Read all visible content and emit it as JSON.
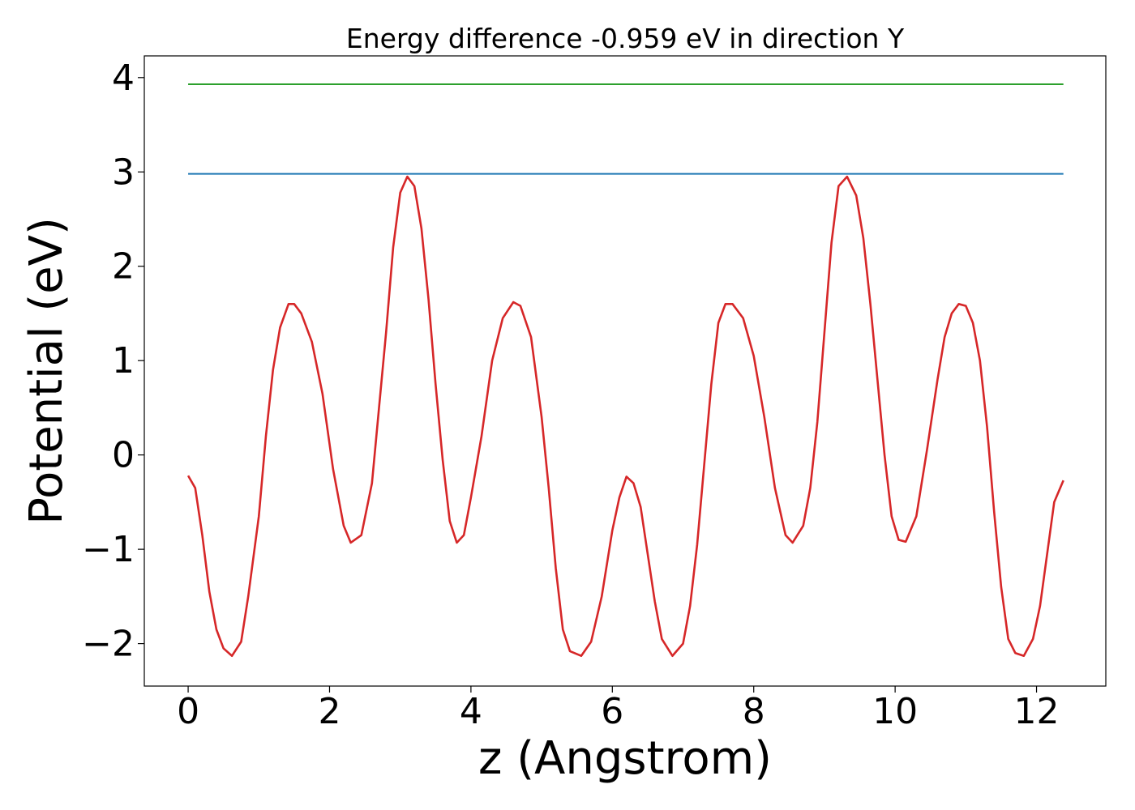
{
  "chart_data": {
    "type": "line",
    "title": "Energy difference -0.959 eV in direction Y",
    "xlabel": "z (Angstrom)",
    "ylabel": "Potential (eV)",
    "xlim": [
      -0.62,
      12.98
    ],
    "ylim": [
      -2.45,
      4.23
    ],
    "x_ticks": [
      0,
      2,
      4,
      6,
      8,
      10,
      12
    ],
    "x_tick_labels": [
      "0",
      "2",
      "4",
      "6",
      "8",
      "10",
      "12"
    ],
    "y_ticks": [
      -2,
      -1,
      0,
      1,
      2,
      3,
      4
    ],
    "y_tick_labels": [
      "−2",
      "−1",
      "0",
      "1",
      "2",
      "3",
      "4"
    ],
    "grid": false,
    "legend": "none",
    "series": [
      {
        "color": "#d62728",
        "style": "line",
        "x": [
          0,
          0.1,
          0.2,
          0.3,
          0.4,
          0.5,
          0.62,
          0.75,
          0.85,
          1.0,
          1.1,
          1.2,
          1.3,
          1.42,
          1.5,
          1.6,
          1.75,
          1.9,
          2.05,
          2.2,
          2.3,
          2.45,
          2.6,
          2.7,
          2.8,
          2.9,
          3.0,
          3.1,
          3.2,
          3.3,
          3.4,
          3.5,
          3.6,
          3.7,
          3.8,
          3.9,
          4.0,
          4.15,
          4.3,
          4.45,
          4.6,
          4.7,
          4.85,
          5.0,
          5.1,
          5.2,
          5.3,
          5.4,
          5.56,
          5.7,
          5.85,
          6.0,
          6.1,
          6.2,
          6.3,
          6.4,
          6.5,
          6.6,
          6.7,
          6.85,
          7.0,
          7.1,
          7.2,
          7.3,
          7.4,
          7.5,
          7.6,
          7.7,
          7.85,
          8.0,
          8.15,
          8.3,
          8.45,
          8.55,
          8.7,
          8.8,
          8.9,
          9.0,
          9.1,
          9.2,
          9.32,
          9.45,
          9.55,
          9.65,
          9.75,
          9.85,
          9.95,
          10.05,
          10.15,
          10.3,
          10.45,
          10.6,
          10.7,
          10.8,
          10.9,
          11.0,
          11.1,
          11.2,
          11.3,
          11.4,
          11.5,
          11.6,
          11.7,
          11.82,
          11.95,
          12.05,
          12.15,
          12.25,
          12.38
        ],
        "values": [
          -0.22,
          -0.35,
          -0.85,
          -1.45,
          -1.85,
          -2.05,
          -2.13,
          -1.98,
          -1.5,
          -0.65,
          0.2,
          0.9,
          1.35,
          1.6,
          1.6,
          1.5,
          1.2,
          0.65,
          -0.15,
          -0.75,
          -0.93,
          -0.85,
          -0.3,
          0.5,
          1.3,
          2.2,
          2.78,
          2.95,
          2.85,
          2.4,
          1.65,
          0.75,
          -0.05,
          -0.7,
          -0.93,
          -0.85,
          -0.45,
          0.2,
          1.0,
          1.45,
          1.62,
          1.58,
          1.25,
          0.4,
          -0.35,
          -1.2,
          -1.85,
          -2.08,
          -2.13,
          -1.98,
          -1.5,
          -0.8,
          -0.45,
          -0.23,
          -0.3,
          -0.55,
          -1.05,
          -1.55,
          -1.95,
          -2.13,
          -2.0,
          -1.6,
          -0.95,
          -0.1,
          0.75,
          1.4,
          1.6,
          1.6,
          1.45,
          1.05,
          0.4,
          -0.35,
          -0.85,
          -0.93,
          -0.75,
          -0.35,
          0.35,
          1.3,
          2.25,
          2.85,
          2.95,
          2.75,
          2.3,
          1.6,
          0.8,
          0.0,
          -0.65,
          -0.9,
          -0.92,
          -0.65,
          0.05,
          0.8,
          1.25,
          1.5,
          1.6,
          1.58,
          1.4,
          1.0,
          0.3,
          -0.6,
          -1.4,
          -1.95,
          -2.1,
          -2.13,
          -1.95,
          -1.6,
          -1.05,
          -0.5,
          -0.27
        ]
      },
      {
        "color": "#1f77b4",
        "style": "line",
        "x": [
          0,
          12.38
        ],
        "values": [
          2.98,
          2.98
        ]
      },
      {
        "color": "#2ca02c",
        "style": "line",
        "x": [
          0,
          12.38
        ],
        "values": [
          3.93,
          3.93
        ]
      }
    ]
  }
}
